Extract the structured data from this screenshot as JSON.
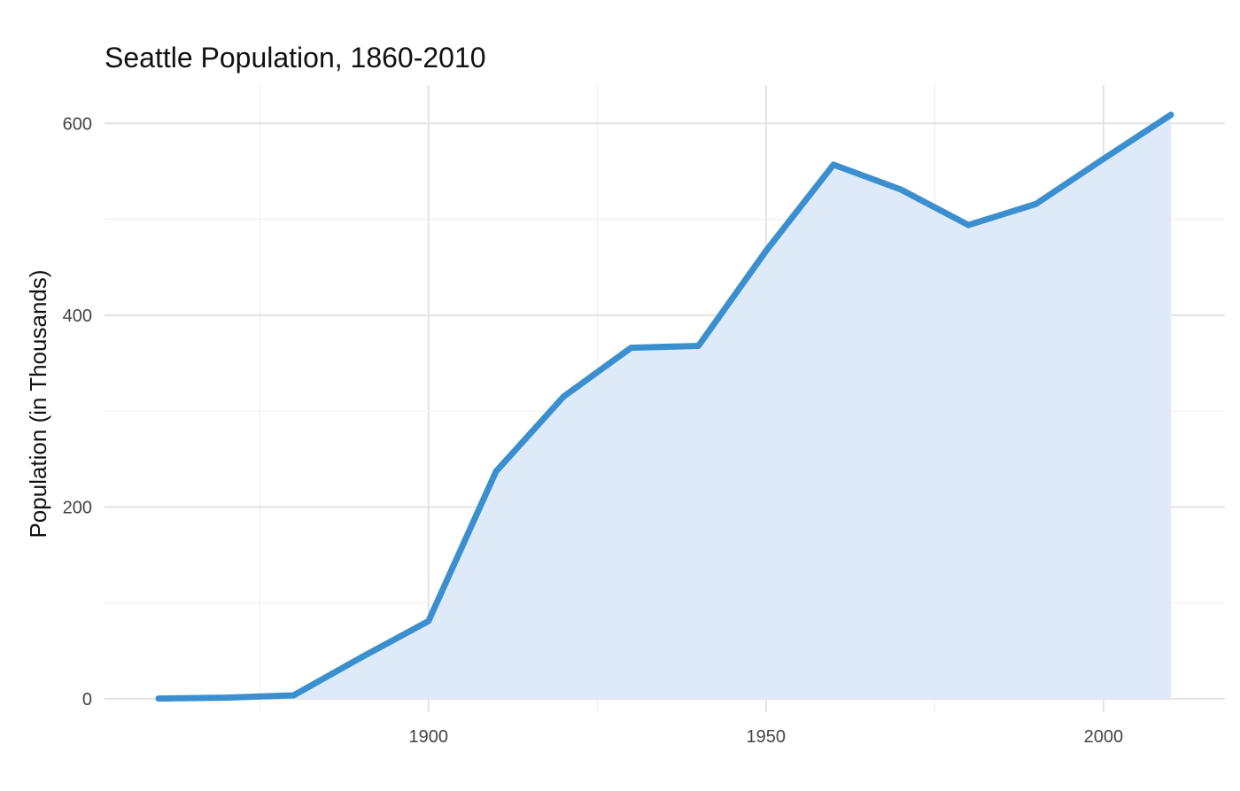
{
  "chart_data": {
    "type": "area",
    "title": "Seattle Population, 1860-2010",
    "xlabel": "",
    "ylabel": "Population (in Thousands)",
    "x": [
      1860,
      1870,
      1880,
      1890,
      1900,
      1910,
      1920,
      1930,
      1940,
      1950,
      1960,
      1970,
      1980,
      1990,
      2000,
      2010
    ],
    "y": [
      0.2,
      1.1,
      3.5,
      43,
      81,
      237,
      315,
      366,
      368,
      467,
      557,
      531,
      494,
      516,
      563,
      609
    ],
    "xlim": [
      1852,
      2018
    ],
    "ylim": [
      -14,
      640
    ],
    "x_ticks": [
      1900,
      1950,
      2000
    ],
    "x_tick_labels": [
      "1900",
      "1950",
      "2000"
    ],
    "y_ticks": [
      0,
      200,
      400,
      600
    ],
    "y_tick_labels": [
      "0",
      "200",
      "400",
      "600"
    ],
    "grid": true,
    "legend": "none",
    "colors": {
      "line": "#3b8fcf",
      "fill": "#deeaf7"
    }
  }
}
